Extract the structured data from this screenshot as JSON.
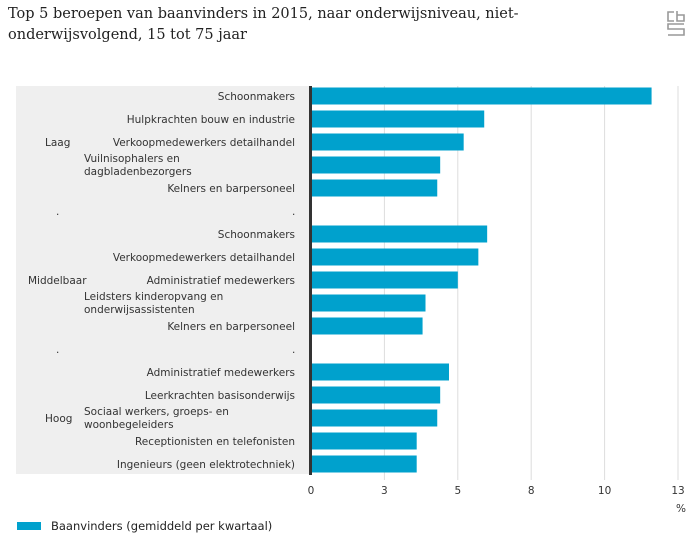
{
  "title": "Top 5 beroepen van baanvinders in 2015, naar onderwijsniveau, niet-onderwijsvolgend, 15 tot 75 jaar",
  "logo_icon": "cbs-logo-icon",
  "colors": {
    "bar": "#00a1cd",
    "panel": "#efefef",
    "grid": "#dddddd",
    "axis": "#333333"
  },
  "chart_data": {
    "type": "bar",
    "orientation": "horizontal",
    "title": "Top 5 beroepen van baanvinders in 2015, naar onderwijsniveau, niet-onderwijsvolgend, 15 tot 75 jaar",
    "xlabel": "%",
    "ylabel": "",
    "xlim": [
      0,
      12.5
    ],
    "xticks": [
      0,
      2.5,
      5,
      7.5,
      10,
      12.5
    ],
    "xtick_labels": [
      "0",
      "3",
      "5",
      "8",
      "10",
      "13"
    ],
    "grid": true,
    "legend": {
      "position": "bottom-left",
      "entries": [
        "Baanvinders (gemiddeld per kwartaal)"
      ]
    },
    "groups": [
      {
        "name": "Laag",
        "categories": [
          "Schoonmakers",
          "Hulpkrachten bouw en industrie",
          "Verkoopmedewerkers detailhandel",
          "Vuilnisophalers en dagbladenbezorgers",
          "Kelners en barpersoneel"
        ],
        "values": [
          11.6,
          5.9,
          5.2,
          4.4,
          4.3
        ]
      },
      {
        "name": "Middelbaar",
        "categories": [
          "Schoonmakers",
          "Verkoopmedewerkers detailhandel",
          "Administratief medewerkers",
          "Leidsters kinderopvang en onderwijsassistenten",
          "Kelners en barpersoneel"
        ],
        "values": [
          6.0,
          5.7,
          5.0,
          3.9,
          3.8
        ]
      },
      {
        "name": "Hoog",
        "categories": [
          "Administratief medewerkers",
          "Leerkrachten basisonderwijs",
          "Sociaal werkers, groeps- en woonbegeleiders",
          "Receptionisten en telefonisten",
          "Ingenieurs (geen elektrotechniek)"
        ],
        "values": [
          4.7,
          4.4,
          4.3,
          3.6,
          3.6
        ]
      }
    ],
    "series": [
      {
        "name": "Baanvinders (gemiddeld per kwartaal)"
      }
    ]
  }
}
